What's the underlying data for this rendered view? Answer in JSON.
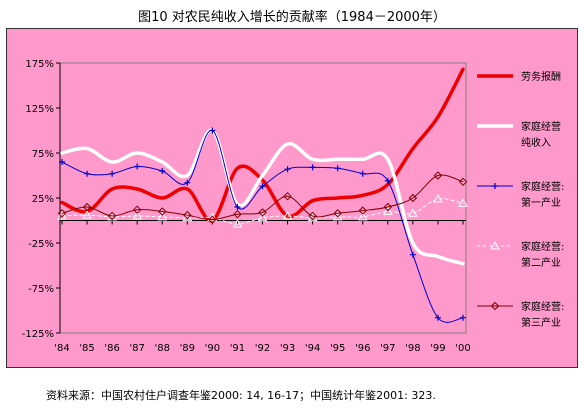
{
  "figure": {
    "title": "图10 对农民纯收入增长的贡献率（1984－2000年）",
    "source": "资料来源：中国农村住户调查年鉴2000: 14, 16-17；中国统计年鉴2001: 323."
  },
  "colors": {
    "panel_bg": "#ff99cc",
    "plot_bg": "#ff99cc",
    "red": "#ee0000",
    "white": "#ffffff",
    "blue": "#0000cc",
    "maroon": "#800000"
  },
  "chart_data": {
    "type": "line",
    "categories": [
      "'84",
      "'85",
      "'86",
      "'87",
      "'88",
      "'89",
      "'90",
      "'91",
      "'92",
      "'93",
      "'94",
      "'95",
      "'96",
      "'97",
      "'98",
      "'99",
      "'00"
    ],
    "ylim": [
      -125,
      175
    ],
    "yticks": [
      175,
      125,
      75,
      25,
      -25,
      -75,
      -125
    ],
    "ytick_labels": [
      "175%",
      "125%",
      "75%",
      "25%",
      "-25%",
      "-75%",
      "-125%"
    ],
    "grid": false,
    "legend_position": "right",
    "series": [
      {
        "name": "劳务报酬",
        "color": "#ee0000",
        "style": "thick",
        "marker": "none",
        "values": [
          20,
          10,
          35,
          35,
          25,
          35,
          0,
          58,
          45,
          5,
          22,
          25,
          28,
          40,
          80,
          115,
          168
        ]
      },
      {
        "name": "家庭经营纯收入",
        "color": "#ffffff",
        "style": "thick",
        "marker": "none",
        "values": [
          75,
          80,
          65,
          75,
          65,
          50,
          100,
          18,
          50,
          85,
          68,
          68,
          68,
          68,
          -25,
          -40,
          -48
        ]
      },
      {
        "name": "家庭经营第一产业",
        "color": "#0000cc",
        "style": "thin",
        "marker": "plus",
        "values": [
          65,
          52,
          52,
          60,
          55,
          42,
          100,
          15,
          38,
          57,
          59,
          58,
          52,
          44,
          -38,
          -108,
          -108
        ]
      },
      {
        "name": "家庭经营第二产业",
        "color": "#ffffff",
        "style": "dashed",
        "marker": "triangle",
        "values": [
          5,
          6,
          4,
          5,
          4,
          3,
          3,
          -4,
          3,
          5,
          3,
          4,
          4,
          10,
          8,
          24,
          19
        ]
      },
      {
        "name": "家庭经营第三产业",
        "color": "#800000",
        "style": "thin",
        "marker": "diamond",
        "values": [
          8,
          15,
          5,
          12,
          10,
          6,
          1,
          7,
          9,
          27,
          5,
          8,
          11,
          15,
          25,
          50,
          43
        ]
      }
    ],
    "legend": [
      {
        "lines": [
          "劳务报酬"
        ]
      },
      {
        "lines": [
          "家庭经营",
          "纯收入"
        ]
      },
      {
        "lines": [
          "家庭经营:",
          "第一产业"
        ]
      },
      {
        "lines": [
          "家庭经营:",
          "第二产业"
        ]
      },
      {
        "lines": [
          "家庭经营:",
          "第三产业"
        ]
      }
    ]
  }
}
